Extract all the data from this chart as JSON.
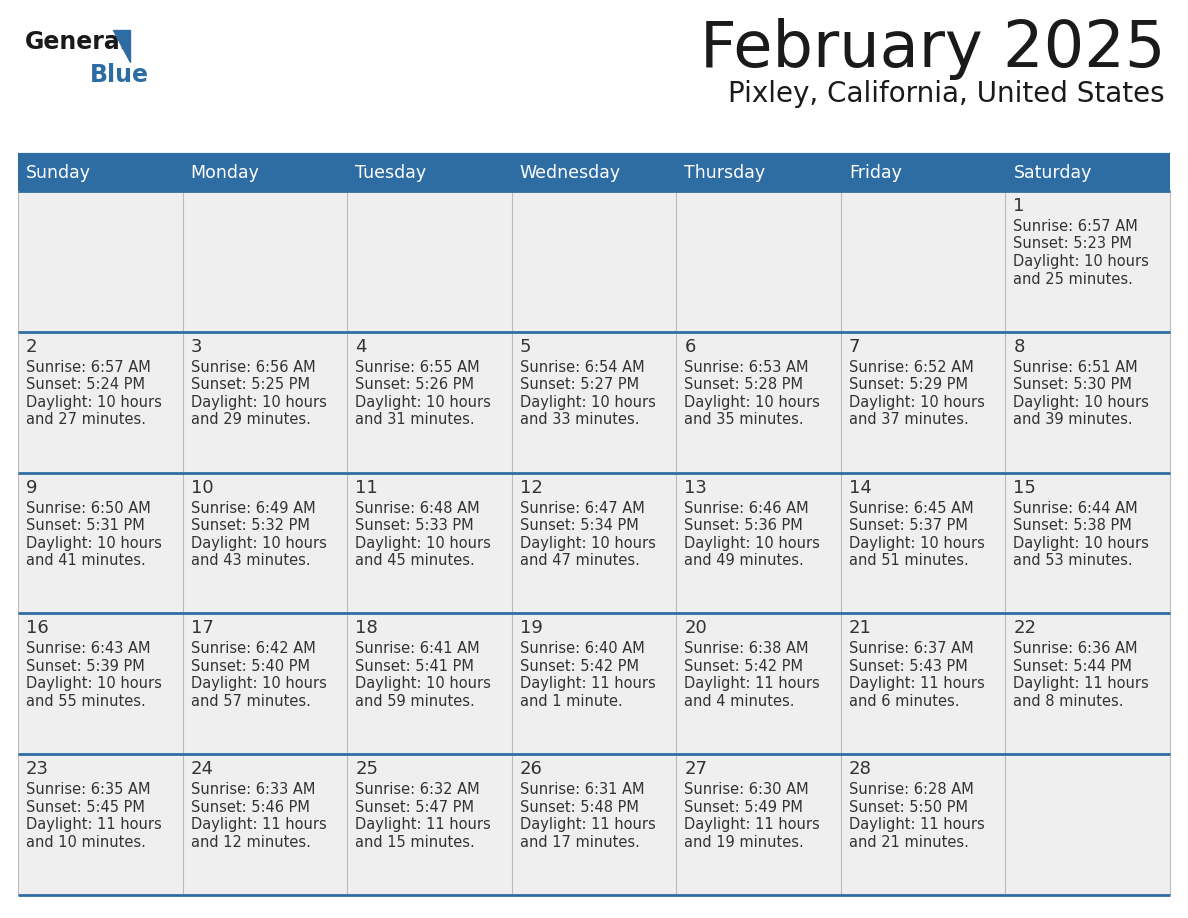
{
  "title": "February 2025",
  "subtitle": "Pixley, California, United States",
  "days_of_week": [
    "Sunday",
    "Monday",
    "Tuesday",
    "Wednesday",
    "Thursday",
    "Friday",
    "Saturday"
  ],
  "header_bg": "#2E6DA4",
  "header_text": "#FFFFFF",
  "cell_bg": "#EFEFEF",
  "cell_white": "#FFFFFF",
  "grid_line_color": "#2E6DA4",
  "day_number_color": "#333333",
  "text_color": "#333333",
  "calendar": [
    [
      null,
      null,
      null,
      null,
      null,
      null,
      {
        "day": "1",
        "sunrise": "6:57 AM",
        "sunset": "5:23 PM",
        "daylight_line1": "Daylight: 10 hours",
        "daylight_line2": "and 25 minutes."
      }
    ],
    [
      {
        "day": "2",
        "sunrise": "6:57 AM",
        "sunset": "5:24 PM",
        "daylight_line1": "Daylight: 10 hours",
        "daylight_line2": "and 27 minutes."
      },
      {
        "day": "3",
        "sunrise": "6:56 AM",
        "sunset": "5:25 PM",
        "daylight_line1": "Daylight: 10 hours",
        "daylight_line2": "and 29 minutes."
      },
      {
        "day": "4",
        "sunrise": "6:55 AM",
        "sunset": "5:26 PM",
        "daylight_line1": "Daylight: 10 hours",
        "daylight_line2": "and 31 minutes."
      },
      {
        "day": "5",
        "sunrise": "6:54 AM",
        "sunset": "5:27 PM",
        "daylight_line1": "Daylight: 10 hours",
        "daylight_line2": "and 33 minutes."
      },
      {
        "day": "6",
        "sunrise": "6:53 AM",
        "sunset": "5:28 PM",
        "daylight_line1": "Daylight: 10 hours",
        "daylight_line2": "and 35 minutes."
      },
      {
        "day": "7",
        "sunrise": "6:52 AM",
        "sunset": "5:29 PM",
        "daylight_line1": "Daylight: 10 hours",
        "daylight_line2": "and 37 minutes."
      },
      {
        "day": "8",
        "sunrise": "6:51 AM",
        "sunset": "5:30 PM",
        "daylight_line1": "Daylight: 10 hours",
        "daylight_line2": "and 39 minutes."
      }
    ],
    [
      {
        "day": "9",
        "sunrise": "6:50 AM",
        "sunset": "5:31 PM",
        "daylight_line1": "Daylight: 10 hours",
        "daylight_line2": "and 41 minutes."
      },
      {
        "day": "10",
        "sunrise": "6:49 AM",
        "sunset": "5:32 PM",
        "daylight_line1": "Daylight: 10 hours",
        "daylight_line2": "and 43 minutes."
      },
      {
        "day": "11",
        "sunrise": "6:48 AM",
        "sunset": "5:33 PM",
        "daylight_line1": "Daylight: 10 hours",
        "daylight_line2": "and 45 minutes."
      },
      {
        "day": "12",
        "sunrise": "6:47 AM",
        "sunset": "5:34 PM",
        "daylight_line1": "Daylight: 10 hours",
        "daylight_line2": "and 47 minutes."
      },
      {
        "day": "13",
        "sunrise": "6:46 AM",
        "sunset": "5:36 PM",
        "daylight_line1": "Daylight: 10 hours",
        "daylight_line2": "and 49 minutes."
      },
      {
        "day": "14",
        "sunrise": "6:45 AM",
        "sunset": "5:37 PM",
        "daylight_line1": "Daylight: 10 hours",
        "daylight_line2": "and 51 minutes."
      },
      {
        "day": "15",
        "sunrise": "6:44 AM",
        "sunset": "5:38 PM",
        "daylight_line1": "Daylight: 10 hours",
        "daylight_line2": "and 53 minutes."
      }
    ],
    [
      {
        "day": "16",
        "sunrise": "6:43 AM",
        "sunset": "5:39 PM",
        "daylight_line1": "Daylight: 10 hours",
        "daylight_line2": "and 55 minutes."
      },
      {
        "day": "17",
        "sunrise": "6:42 AM",
        "sunset": "5:40 PM",
        "daylight_line1": "Daylight: 10 hours",
        "daylight_line2": "and 57 minutes."
      },
      {
        "day": "18",
        "sunrise": "6:41 AM",
        "sunset": "5:41 PM",
        "daylight_line1": "Daylight: 10 hours",
        "daylight_line2": "and 59 minutes."
      },
      {
        "day": "19",
        "sunrise": "6:40 AM",
        "sunset": "5:42 PM",
        "daylight_line1": "Daylight: 11 hours",
        "daylight_line2": "and 1 minute."
      },
      {
        "day": "20",
        "sunrise": "6:38 AM",
        "sunset": "5:42 PM",
        "daylight_line1": "Daylight: 11 hours",
        "daylight_line2": "and 4 minutes."
      },
      {
        "day": "21",
        "sunrise": "6:37 AM",
        "sunset": "5:43 PM",
        "daylight_line1": "Daylight: 11 hours",
        "daylight_line2": "and 6 minutes."
      },
      {
        "day": "22",
        "sunrise": "6:36 AM",
        "sunset": "5:44 PM",
        "daylight_line1": "Daylight: 11 hours",
        "daylight_line2": "and 8 minutes."
      }
    ],
    [
      {
        "day": "23",
        "sunrise": "6:35 AM",
        "sunset": "5:45 PM",
        "daylight_line1": "Daylight: 11 hours",
        "daylight_line2": "and 10 minutes."
      },
      {
        "day": "24",
        "sunrise": "6:33 AM",
        "sunset": "5:46 PM",
        "daylight_line1": "Daylight: 11 hours",
        "daylight_line2": "and 12 minutes."
      },
      {
        "day": "25",
        "sunrise": "6:32 AM",
        "sunset": "5:47 PM",
        "daylight_line1": "Daylight: 11 hours",
        "daylight_line2": "and 15 minutes."
      },
      {
        "day": "26",
        "sunrise": "6:31 AM",
        "sunset": "5:48 PM",
        "daylight_line1": "Daylight: 11 hours",
        "daylight_line2": "and 17 minutes."
      },
      {
        "day": "27",
        "sunrise": "6:30 AM",
        "sunset": "5:49 PM",
        "daylight_line1": "Daylight: 11 hours",
        "daylight_line2": "and 19 minutes."
      },
      {
        "day": "28",
        "sunrise": "6:28 AM",
        "sunset": "5:50 PM",
        "daylight_line1": "Daylight: 11 hours",
        "daylight_line2": "and 21 minutes."
      },
      null
    ]
  ]
}
